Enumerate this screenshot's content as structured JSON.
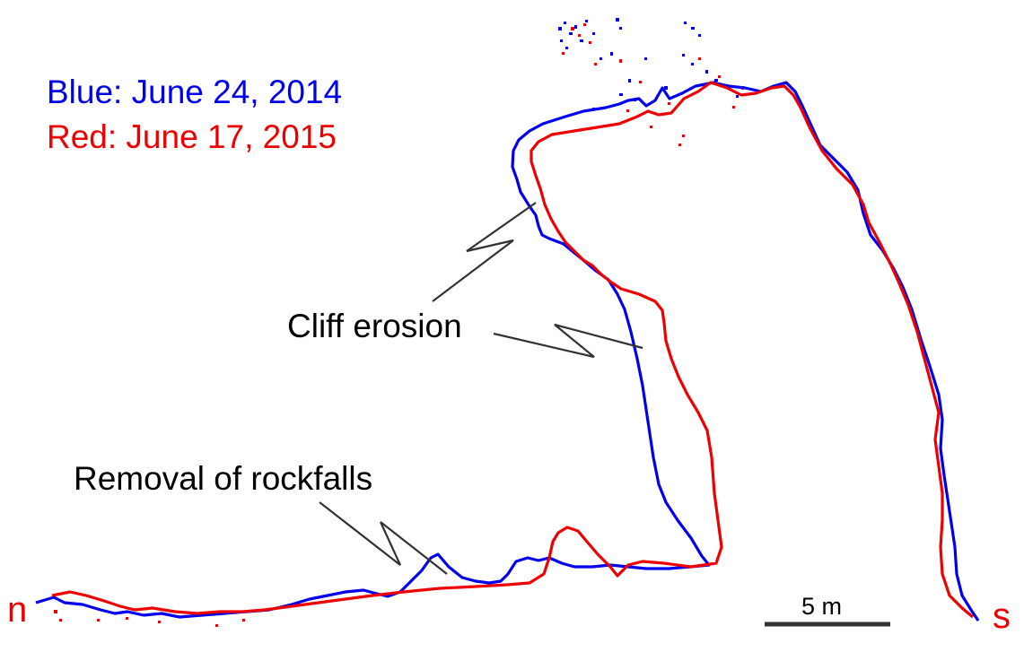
{
  "legend": {
    "blue_label": "Blue: June 24, 2014",
    "red_label": "Red: June 17, 2015",
    "blue_color": "#0000ee",
    "red_color": "#ee0000"
  },
  "annotations": {
    "cliff_erosion": "Cliff erosion",
    "rockfall_removal": "Removal of rockfalls"
  },
  "directions": {
    "north": "n",
    "south": "s"
  },
  "scale_bar": {
    "label": "5 m"
  }
}
